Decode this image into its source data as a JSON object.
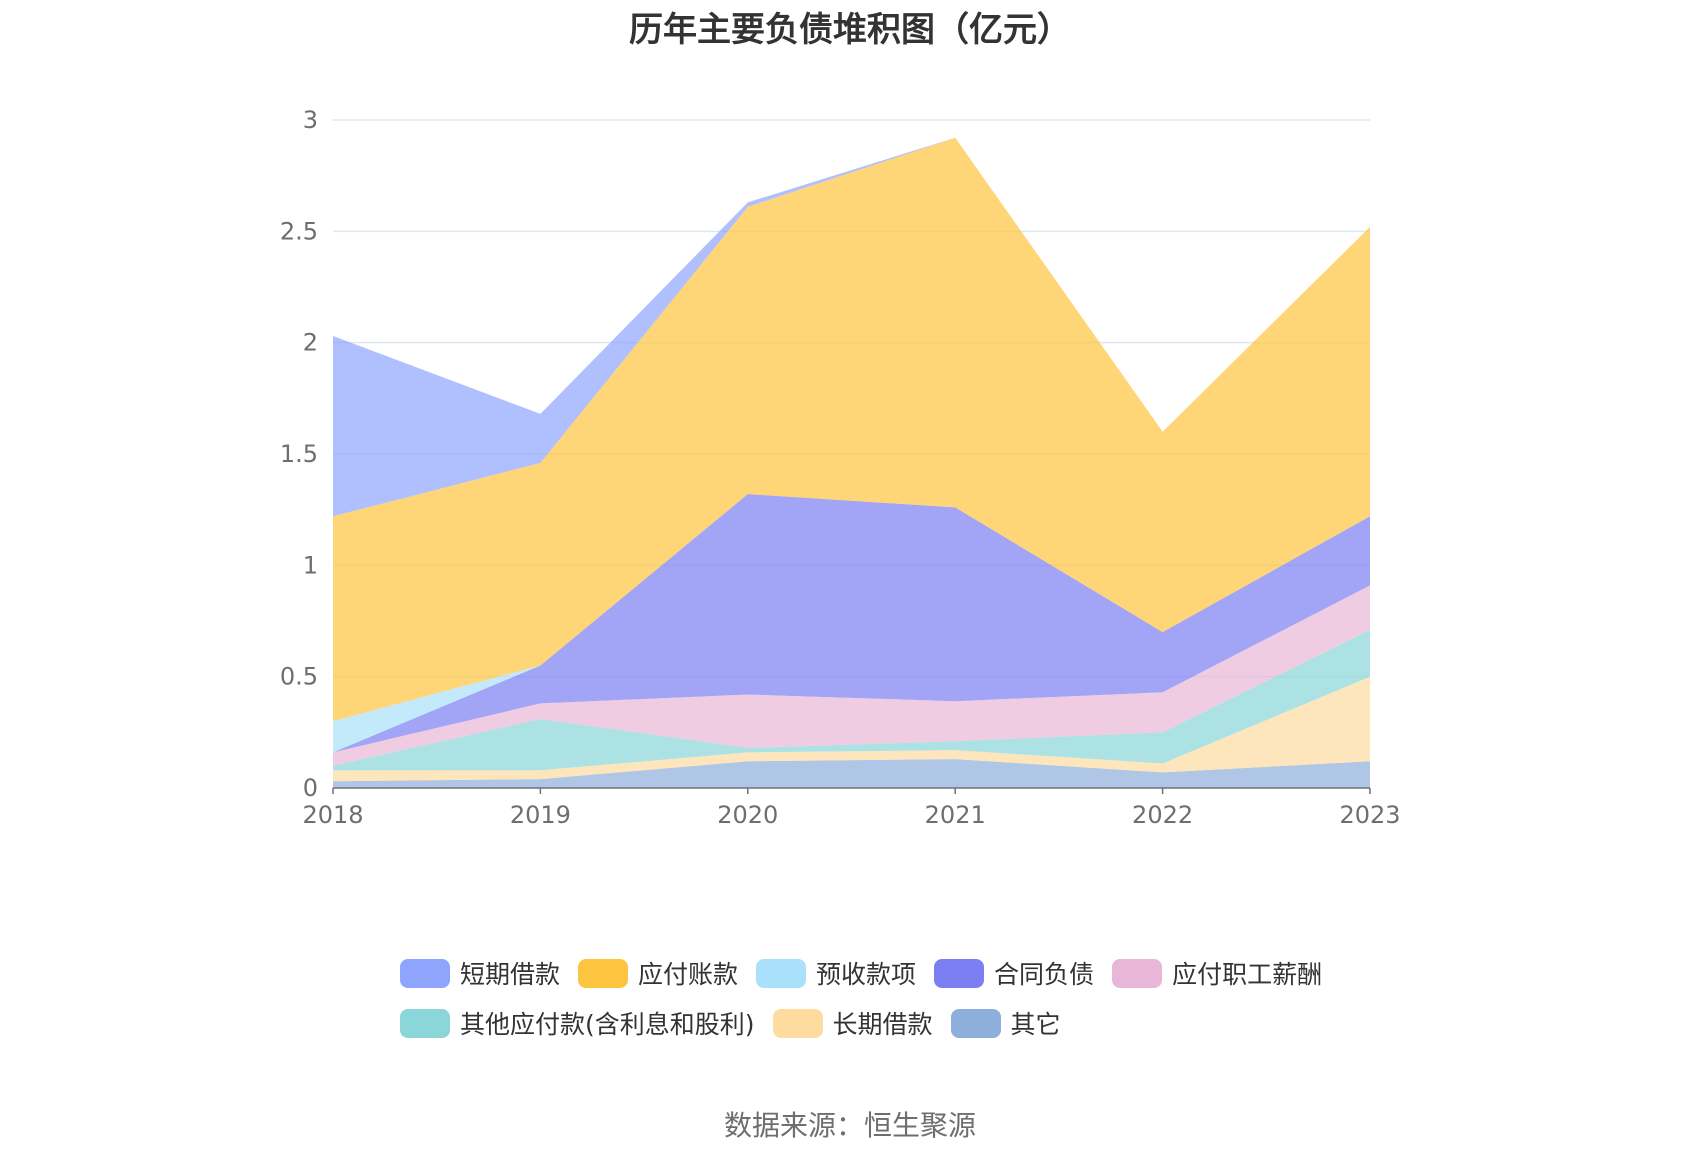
{
  "chart_data": {
    "type": "area",
    "stacked": true,
    "title": "历年主要负债堆积图（亿元）",
    "source": "数据来源：恒生聚源",
    "categories": [
      "2018",
      "2019",
      "2020",
      "2021",
      "2022",
      "2023"
    ],
    "ylim": [
      0,
      3
    ],
    "yticks": [
      "0",
      "0.5",
      "1",
      "1.5",
      "2",
      "2.5",
      "3"
    ],
    "grid": true,
    "legend_position": "bottom",
    "series": [
      {
        "name": "其它",
        "color": "#8eaedb",
        "values": [
          0.03,
          0.04,
          0.12,
          0.13,
          0.07,
          0.12
        ]
      },
      {
        "name": "长期借款",
        "color": "#fedca0",
        "values": [
          0.05,
          0.04,
          0.04,
          0.04,
          0.04,
          0.38
        ]
      },
      {
        "name": "其他应付款(含利息和股利)",
        "color": "#8ad6d8",
        "values": [
          0.02,
          0.23,
          0.02,
          0.04,
          0.14,
          0.21
        ]
      },
      {
        "name": "应付职工薪酬",
        "color": "#e8b6d6",
        "values": [
          0.06,
          0.07,
          0.24,
          0.18,
          0.18,
          0.2
        ]
      },
      {
        "name": "合同负债",
        "color": "#7b7ff2",
        "values": [
          0,
          0.17,
          0.9,
          0.87,
          0.27,
          0.31
        ]
      },
      {
        "name": "预收款项",
        "color": "#a9e1fa",
        "values": [
          0.14,
          0,
          0,
          0,
          0,
          0
        ]
      },
      {
        "name": "应付账款",
        "color": "#fdc53f",
        "values": [
          0.92,
          0.91,
          1.29,
          1.66,
          0.9,
          1.3
        ]
      },
      {
        "name": "短期借款",
        "color": "#8ea4fd",
        "values": [
          0.81,
          0.22,
          0.02,
          0,
          0,
          0
        ]
      }
    ],
    "legend_rows": [
      [
        "短期借款",
        "应付账款",
        "预收款项",
        "合同负债",
        "应付职工薪酬"
      ],
      [
        "其他应付款(含利息和股利)",
        "长期借款",
        "其它"
      ]
    ]
  }
}
